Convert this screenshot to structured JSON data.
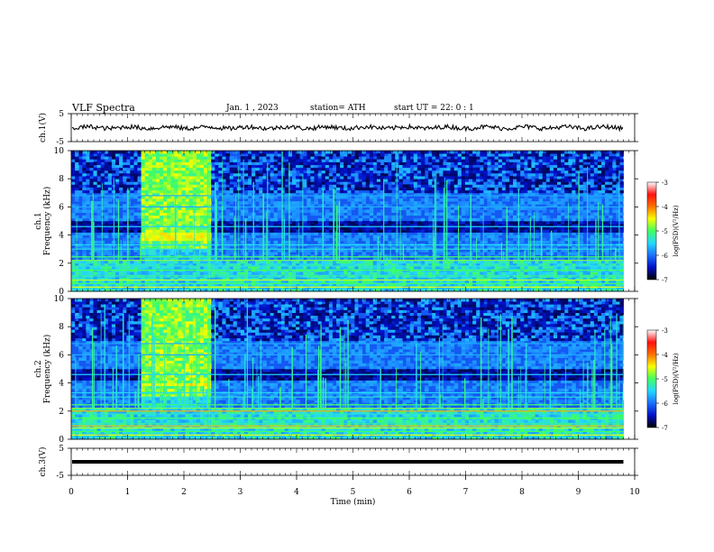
{
  "header": {
    "title": "VLF Spectra",
    "date": "Jan. 1 , 2023",
    "station": "station= ATH",
    "start_ut": "start UT = 22: 0 : 1"
  },
  "chart_data": [
    {
      "type": "line",
      "ylabel": "ch.1(V)",
      "ylim": [
        -5,
        5
      ],
      "y_ticks": [
        "5",
        "-5"
      ],
      "series": [
        {
          "description": "waveform amplitude",
          "baseline": 0,
          "approx_range": [
            -1,
            1
          ]
        }
      ]
    },
    {
      "type": "heatmap",
      "ylabel": "ch.1\nFrequency (kHz)",
      "ylim": [
        0,
        10
      ],
      "y_ticks": [
        "0",
        "2",
        "4",
        "6",
        "8",
        "10"
      ],
      "features": {
        "broadband_burst_time_min": [
          1.2,
          2.45
        ],
        "burst_band_kHz": [
          3.6,
          4.3
        ],
        "data_end_time_min": 9.8
      }
    },
    {
      "type": "heatmap",
      "ylabel": "ch.2\nFrequency (kHz)",
      "ylim": [
        0,
        10
      ],
      "y_ticks": [
        "0",
        "2",
        "4",
        "6",
        "8",
        "10"
      ],
      "features": {
        "broadband_burst_time_min": [
          1.2,
          2.45
        ],
        "burst_band_kHz": [
          3.7,
          4.1
        ],
        "data_end_time_min": 9.8
      }
    },
    {
      "type": "line",
      "ylabel": "ch.3(V)",
      "ylim": [
        -5,
        5
      ],
      "y_ticks": [
        "5",
        "-5"
      ],
      "xlabel": "Time (min)",
      "xlim": [
        0,
        10
      ],
      "x_ticks": [
        "0",
        "1",
        "2",
        "3",
        "4",
        "5",
        "6",
        "7",
        "8",
        "9",
        "10"
      ],
      "series": [
        {
          "description": "flat waveform",
          "value": 0
        }
      ]
    }
  ],
  "colorbar": {
    "label": "log(PSD)(V²/Hz)",
    "range": [
      -7,
      -3
    ],
    "ticks": [
      "-3",
      "-4",
      "-5",
      "-6",
      "-7"
    ],
    "colors": [
      "#000000",
      "#0010c8",
      "#1a70ff",
      "#22d8ff",
      "#40ff60",
      "#f8ff00",
      "#ff7000",
      "#ff1010",
      "#ffffff"
    ]
  }
}
